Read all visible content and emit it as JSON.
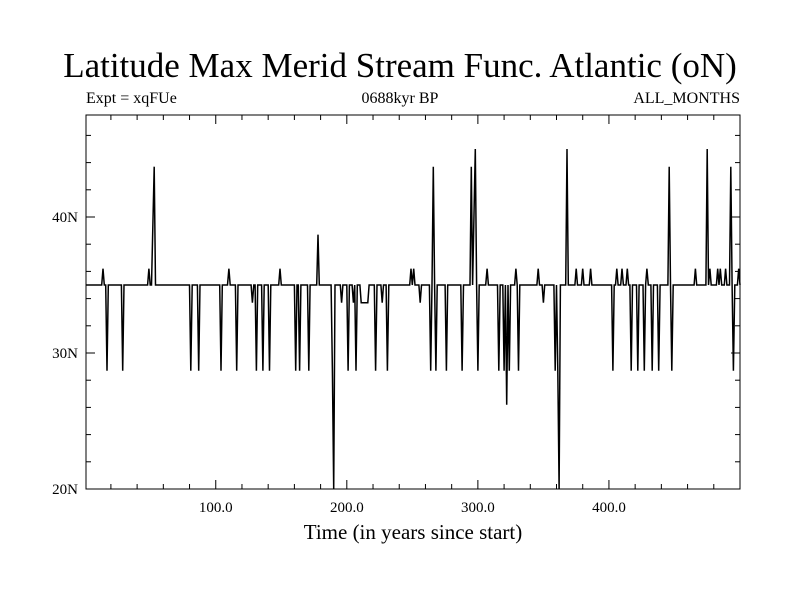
{
  "chart_data": {
    "type": "line",
    "title": "Latitude Max Merid Stream Func. Atlantic (oN)",
    "subtitle_left": "Expt = xqFUe",
    "subtitle_center": "0688kyr BP",
    "subtitle_right": "ALL_MONTHS",
    "xlabel": "Time (in years since start)",
    "ylabel": "",
    "xlim": [
      1,
      500
    ],
    "ylim": [
      20,
      47.5
    ],
    "x_ticks": [
      100,
      200,
      300,
      400
    ],
    "x_tick_labels": [
      "100.0",
      "200.0",
      "300.0",
      "400.0"
    ],
    "y_ticks": [
      20,
      30,
      40
    ],
    "y_tick_labels": [
      "20N",
      "30N",
      "40N"
    ],
    "grid": false,
    "baseline": 35,
    "series": [
      {
        "color": "#000000",
        "points": [
          [
            1,
            35
          ],
          [
            13,
            35
          ],
          [
            14,
            36.2
          ],
          [
            15,
            35
          ],
          [
            16,
            35
          ],
          [
            17,
            28.7
          ],
          [
            18,
            35
          ],
          [
            28,
            35
          ],
          [
            29,
            28.7
          ],
          [
            30,
            35
          ],
          [
            48,
            35
          ],
          [
            49,
            36.2
          ],
          [
            50,
            35
          ],
          [
            51,
            35
          ],
          [
            53,
            43.7
          ],
          [
            54,
            35
          ],
          [
            80,
            35
          ],
          [
            81,
            28.7
          ],
          [
            82,
            35
          ],
          [
            86,
            35
          ],
          [
            87,
            28.7
          ],
          [
            88,
            35
          ],
          [
            103,
            35
          ],
          [
            104,
            28.7
          ],
          [
            105,
            35
          ],
          [
            109,
            35
          ],
          [
            110,
            36.2
          ],
          [
            111,
            35
          ],
          [
            115,
            35
          ],
          [
            116,
            28.7
          ],
          [
            117,
            35
          ],
          [
            127,
            35
          ],
          [
            128,
            33.7
          ],
          [
            129,
            35
          ],
          [
            130,
            35
          ],
          [
            131,
            28.7
          ],
          [
            132,
            35
          ],
          [
            135,
            35
          ],
          [
            136,
            28.7
          ],
          [
            137,
            35
          ],
          [
            140,
            35
          ],
          [
            141,
            28.7
          ],
          [
            142,
            35
          ],
          [
            148,
            35
          ],
          [
            149,
            36.2
          ],
          [
            150,
            35
          ],
          [
            160,
            35
          ],
          [
            161,
            28.7
          ],
          [
            162,
            35
          ],
          [
            163,
            35
          ],
          [
            164,
            28.7
          ],
          [
            165,
            35
          ],
          [
            170,
            35
          ],
          [
            171,
            28.7
          ],
          [
            172,
            35
          ],
          [
            177,
            35
          ],
          [
            178,
            38.7
          ],
          [
            179,
            35
          ],
          [
            188,
            35
          ],
          [
            189,
            28.7
          ],
          [
            190,
            20
          ],
          [
            191,
            35
          ],
          [
            195,
            35
          ],
          [
            196,
            33.7
          ],
          [
            197,
            35
          ],
          [
            200,
            35
          ],
          [
            201,
            28.7
          ],
          [
            202,
            35
          ],
          [
            204,
            35
          ],
          [
            205,
            33.7
          ],
          [
            206,
            35
          ],
          [
            207,
            28.7
          ],
          [
            208,
            35
          ],
          [
            210,
            35
          ],
          [
            211,
            33.7
          ],
          [
            216,
            33.7
          ],
          [
            217,
            35
          ],
          [
            221,
            35
          ],
          [
            222,
            28.7
          ],
          [
            223,
            35
          ],
          [
            226,
            35
          ],
          [
            227,
            33.7
          ],
          [
            228,
            35
          ],
          [
            230,
            35
          ],
          [
            231,
            28.7
          ],
          [
            232,
            35
          ],
          [
            248,
            35
          ],
          [
            249,
            36.2
          ],
          [
            250,
            35
          ],
          [
            251,
            36.2
          ],
          [
            252,
            35
          ],
          [
            255,
            35
          ],
          [
            256,
            33.7
          ],
          [
            257,
            35
          ],
          [
            263,
            35
          ],
          [
            264,
            28.7
          ],
          [
            265,
            35
          ],
          [
            266,
            43.7
          ],
          [
            267,
            35
          ],
          [
            268,
            28.7
          ],
          [
            269,
            35
          ],
          [
            275,
            35
          ],
          [
            276,
            28.7
          ],
          [
            277,
            35
          ],
          [
            287,
            35
          ],
          [
            288,
            28.7
          ],
          [
            289,
            35
          ],
          [
            294,
            35
          ],
          [
            295,
            43.7
          ],
          [
            296,
            35
          ],
          [
            298,
            45
          ],
          [
            299,
            35
          ],
          [
            300,
            28.7
          ],
          [
            301,
            35
          ],
          [
            306,
            35
          ],
          [
            307,
            36.2
          ],
          [
            308,
            35
          ],
          [
            315,
            35
          ],
          [
            316,
            28.7
          ],
          [
            317,
            35
          ],
          [
            319,
            35
          ],
          [
            320,
            28.7
          ],
          [
            321,
            35
          ],
          [
            322,
            26.2
          ],
          [
            323,
            35
          ],
          [
            324,
            28.7
          ],
          [
            325,
            35
          ],
          [
            328,
            35
          ],
          [
            329,
            36.2
          ],
          [
            330,
            35
          ],
          [
            331,
            28.7
          ],
          [
            332,
            35
          ],
          [
            345,
            35
          ],
          [
            346,
            36.2
          ],
          [
            347,
            35
          ],
          [
            349,
            35
          ],
          [
            350,
            33.7
          ],
          [
            351,
            35
          ],
          [
            358,
            35
          ],
          [
            359,
            28.7
          ],
          [
            360,
            35
          ],
          [
            361,
            28.7
          ],
          [
            362,
            20
          ],
          [
            363,
            35
          ],
          [
            367,
            35
          ],
          [
            368,
            45
          ],
          [
            369,
            35
          ],
          [
            374,
            35
          ],
          [
            375,
            36.2
          ],
          [
            376,
            35
          ],
          [
            379,
            35
          ],
          [
            380,
            36.2
          ],
          [
            381,
            35
          ],
          [
            385,
            35
          ],
          [
            386,
            36.2
          ],
          [
            387,
            35
          ],
          [
            402,
            35
          ],
          [
            403,
            28.7
          ],
          [
            404,
            35
          ],
          [
            405,
            35
          ],
          [
            406,
            36.2
          ],
          [
            407,
            35
          ],
          [
            409,
            35
          ],
          [
            410,
            36.2
          ],
          [
            411,
            35
          ],
          [
            413,
            35
          ],
          [
            414,
            36.2
          ],
          [
            415,
            35
          ],
          [
            416,
            35
          ],
          [
            417,
            28.7
          ],
          [
            418,
            35
          ],
          [
            421,
            35
          ],
          [
            422,
            28.7
          ],
          [
            423,
            35
          ],
          [
            426,
            35
          ],
          [
            427,
            28.7
          ],
          [
            428,
            35
          ],
          [
            429,
            36.2
          ],
          [
            430,
            35
          ],
          [
            432,
            35
          ],
          [
            433,
            28.7
          ],
          [
            434,
            35
          ],
          [
            437,
            35
          ],
          [
            438,
            28.7
          ],
          [
            439,
            35
          ],
          [
            445,
            35
          ],
          [
            446,
            43.7
          ],
          [
            447,
            35
          ],
          [
            448,
            28.7
          ],
          [
            449,
            35
          ],
          [
            465,
            35
          ],
          [
            466,
            36.2
          ],
          [
            467,
            35
          ],
          [
            474,
            35
          ],
          [
            475,
            45
          ],
          [
            476,
            35
          ],
          [
            477,
            36.2
          ],
          [
            478,
            35
          ],
          [
            482,
            35
          ],
          [
            483,
            36.2
          ],
          [
            484,
            35
          ],
          [
            485,
            36.2
          ],
          [
            486,
            35
          ],
          [
            488,
            35
          ],
          [
            489,
            36.2
          ],
          [
            490,
            35
          ],
          [
            492,
            35
          ],
          [
            493,
            43.7
          ],
          [
            494,
            35
          ],
          [
            495,
            28.7
          ],
          [
            496,
            35
          ],
          [
            498,
            35
          ],
          [
            499,
            36.2
          ],
          [
            500,
            35
          ]
        ]
      }
    ]
  }
}
